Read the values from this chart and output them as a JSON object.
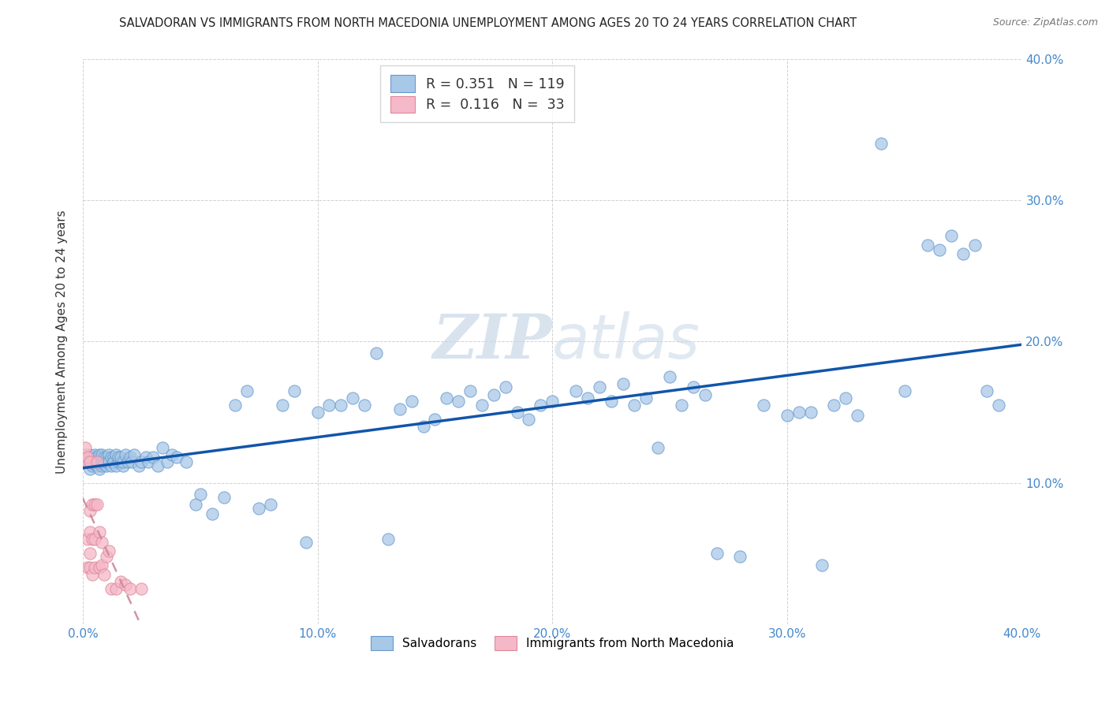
{
  "title": "SALVADORAN VS IMMIGRANTS FROM NORTH MACEDONIA UNEMPLOYMENT AMONG AGES 20 TO 24 YEARS CORRELATION CHART",
  "source": "Source: ZipAtlas.com",
  "ylabel": "Unemployment Among Ages 20 to 24 years",
  "xlim": [
    0.0,
    0.4
  ],
  "ylim": [
    0.0,
    0.4
  ],
  "xticks": [
    0.0,
    0.1,
    0.2,
    0.3,
    0.4
  ],
  "yticks": [
    0.1,
    0.2,
    0.3,
    0.4
  ],
  "xticklabels": [
    "0.0%",
    "10.0%",
    "20.0%",
    "30.0%",
    "40.0%"
  ],
  "yticklabels_right": [
    "10.0%",
    "20.0%",
    "30.0%",
    "40.0%"
  ],
  "salvadorans_R": 0.351,
  "salvadorans_N": 119,
  "macedonia_R": 0.116,
  "macedonia_N": 33,
  "blue_color": "#a8c8e8",
  "blue_edge_color": "#6699cc",
  "pink_color": "#f5b8c8",
  "pink_edge_color": "#dd8899",
  "blue_line_color": "#1155aa",
  "pink_line_color": "#cc8899",
  "grid_color": "#cccccc",
  "background_color": "#ffffff",
  "watermark_color": "#c8d8e8",
  "legend_edge_color": "#cccccc",
  "right_tick_color": "#4488cc",
  "title_color": "#222222",
  "source_color": "#777777",
  "ylabel_color": "#333333",
  "sal_x": [
    0.002,
    0.003,
    0.003,
    0.004,
    0.004,
    0.005,
    0.005,
    0.005,
    0.006,
    0.006,
    0.006,
    0.006,
    0.007,
    0.007,
    0.007,
    0.007,
    0.008,
    0.008,
    0.008,
    0.009,
    0.009,
    0.009,
    0.01,
    0.01,
    0.01,
    0.011,
    0.011,
    0.012,
    0.012,
    0.013,
    0.013,
    0.013,
    0.014,
    0.014,
    0.015,
    0.015,
    0.016,
    0.016,
    0.017,
    0.017,
    0.018,
    0.019,
    0.02,
    0.021,
    0.022,
    0.024,
    0.025,
    0.027,
    0.028,
    0.03,
    0.032,
    0.034,
    0.036,
    0.038,
    0.04,
    0.044,
    0.048,
    0.05,
    0.055,
    0.06,
    0.065,
    0.07,
    0.075,
    0.08,
    0.085,
    0.09,
    0.095,
    0.1,
    0.105,
    0.11,
    0.115,
    0.12,
    0.13,
    0.135,
    0.14,
    0.145,
    0.15,
    0.155,
    0.16,
    0.165,
    0.17,
    0.175,
    0.18,
    0.185,
    0.19,
    0.195,
    0.2,
    0.21,
    0.215,
    0.22,
    0.225,
    0.23,
    0.24,
    0.25,
    0.26,
    0.265,
    0.27,
    0.28,
    0.29,
    0.3,
    0.31,
    0.315,
    0.32,
    0.325,
    0.33,
    0.34,
    0.35,
    0.36,
    0.365,
    0.37,
    0.375,
    0.38,
    0.385,
    0.39,
    0.305,
    0.255,
    0.245,
    0.235,
    0.125
  ],
  "sal_y": [
    0.115,
    0.12,
    0.11,
    0.115,
    0.112,
    0.118,
    0.113,
    0.12,
    0.115,
    0.117,
    0.112,
    0.118,
    0.115,
    0.12,
    0.11,
    0.115,
    0.118,
    0.112,
    0.12,
    0.113,
    0.115,
    0.118,
    0.112,
    0.118,
    0.115,
    0.12,
    0.115,
    0.118,
    0.112,
    0.115,
    0.118,
    0.115,
    0.12,
    0.112,
    0.115,
    0.118,
    0.115,
    0.118,
    0.112,
    0.115,
    0.12,
    0.115,
    0.118,
    0.115,
    0.12,
    0.112,
    0.115,
    0.118,
    0.115,
    0.118,
    0.112,
    0.125,
    0.115,
    0.12,
    0.118,
    0.115,
    0.085,
    0.092,
    0.078,
    0.09,
    0.155,
    0.165,
    0.082,
    0.085,
    0.155,
    0.165,
    0.058,
    0.15,
    0.155,
    0.155,
    0.16,
    0.155,
    0.06,
    0.152,
    0.158,
    0.14,
    0.145,
    0.16,
    0.158,
    0.165,
    0.155,
    0.162,
    0.168,
    0.15,
    0.145,
    0.155,
    0.158,
    0.165,
    0.16,
    0.168,
    0.158,
    0.17,
    0.16,
    0.175,
    0.168,
    0.162,
    0.05,
    0.048,
    0.155,
    0.148,
    0.15,
    0.042,
    0.155,
    0.16,
    0.148,
    0.34,
    0.165,
    0.268,
    0.265,
    0.275,
    0.262,
    0.268,
    0.165,
    0.155,
    0.15,
    0.155,
    0.125,
    0.155,
    0.192
  ],
  "mac_x": [
    0.001,
    0.001,
    0.001,
    0.002,
    0.002,
    0.002,
    0.002,
    0.003,
    0.003,
    0.003,
    0.003,
    0.003,
    0.004,
    0.004,
    0.004,
    0.005,
    0.005,
    0.005,
    0.006,
    0.006,
    0.007,
    0.007,
    0.008,
    0.008,
    0.009,
    0.01,
    0.011,
    0.012,
    0.014,
    0.016,
    0.018,
    0.02,
    0.025
  ],
  "mac_y": [
    0.115,
    0.12,
    0.125,
    0.115,
    0.118,
    0.06,
    0.04,
    0.115,
    0.08,
    0.065,
    0.05,
    0.04,
    0.085,
    0.06,
    0.035,
    0.085,
    0.06,
    0.04,
    0.115,
    0.085,
    0.065,
    0.04,
    0.058,
    0.042,
    0.035,
    0.048,
    0.052,
    0.025,
    0.025,
    0.03,
    0.028,
    0.025,
    0.025
  ]
}
